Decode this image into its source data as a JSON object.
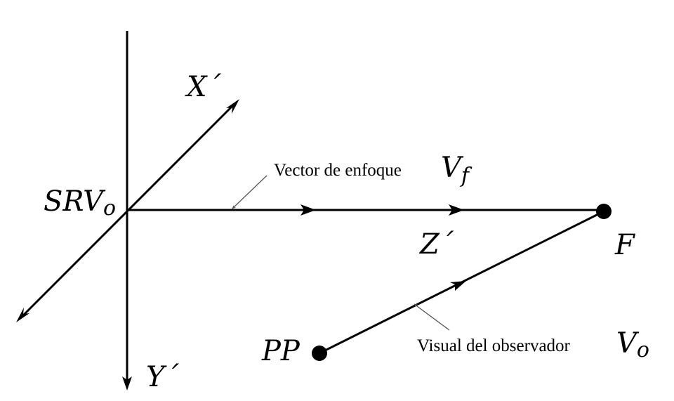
{
  "labels": {
    "x_axis": "X´",
    "y_axis": "Y´",
    "z_axis": "Z´",
    "origin": "SRV",
    "origin_sub": "o",
    "focus_point": "F",
    "observer_point": "PP",
    "focus_vector_caption": "Vector de enfoque",
    "focus_vector_symbol": "V",
    "focus_vector_sub": "f",
    "observer_line_caption": "Visual del observador",
    "observer_line_symbol": "V",
    "observer_line_sub": "o"
  },
  "colors": {
    "stroke": "#000000",
    "pointer": "#555555",
    "background": "#ffffff"
  }
}
